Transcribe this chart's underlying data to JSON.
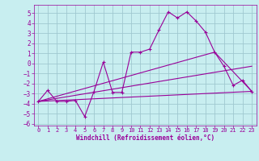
{
  "bg_color": "#c8eef0",
  "grid_color": "#a0c8d0",
  "line_color": "#990099",
  "xlim": [
    -0.5,
    23.5
  ],
  "ylim": [
    -6.2,
    5.8
  ],
  "xlabel": "Windchill (Refroidissement éolien,°C)",
  "yticks": [
    -6,
    -5,
    -4,
    -3,
    -2,
    -1,
    0,
    1,
    2,
    3,
    4,
    5
  ],
  "xticks": [
    0,
    1,
    2,
    3,
    4,
    5,
    6,
    7,
    8,
    9,
    10,
    11,
    12,
    13,
    14,
    15,
    16,
    17,
    18,
    19,
    20,
    21,
    22,
    23
  ],
  "line1_x": [
    0,
    1,
    2,
    3,
    4,
    5,
    6,
    7,
    8,
    9,
    10,
    11,
    12,
    13,
    14,
    15,
    16,
    17,
    18,
    19,
    20,
    21,
    22,
    23
  ],
  "line1_y": [
    -3.8,
    -2.7,
    -3.8,
    -3.8,
    -3.7,
    -5.3,
    -2.8,
    0.1,
    -2.9,
    -2.9,
    1.1,
    1.1,
    1.4,
    3.3,
    5.1,
    4.5,
    5.1,
    4.2,
    3.1,
    1.1,
    -0.3,
    -2.2,
    -1.7,
    -2.8
  ],
  "line2_x": [
    0,
    23
  ],
  "line2_y": [
    -3.8,
    -2.8
  ],
  "line3_x": [
    0,
    23
  ],
  "line3_y": [
    -3.8,
    -0.3
  ],
  "line4_x": [
    0,
    19,
    23
  ],
  "line4_y": [
    -3.8,
    1.1,
    -2.8
  ]
}
